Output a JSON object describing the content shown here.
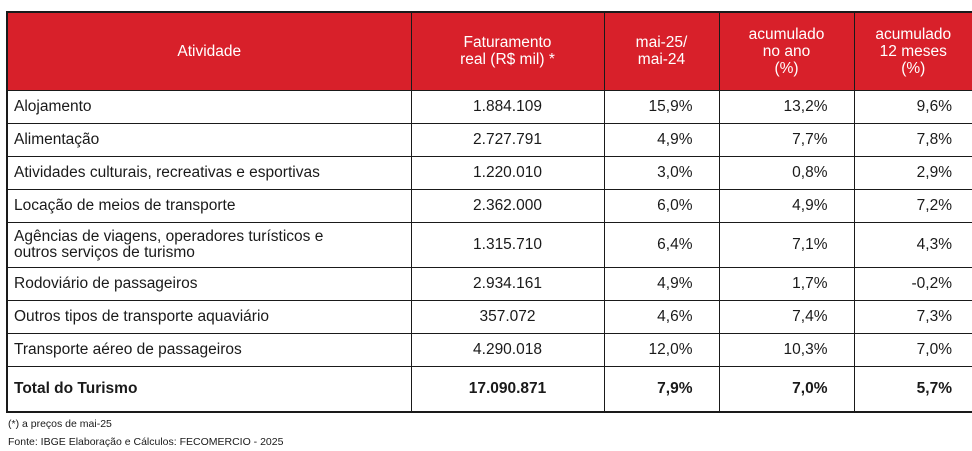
{
  "table": {
    "headers": [
      "Atividade",
      "Faturamento\nreal (R$ mil) *",
      "mai-25/\nmai-24",
      "acumulado\nno ano\n(%)",
      "acumulado\n12 meses\n(%)"
    ],
    "rows": [
      {
        "atividade": "Alojamento",
        "faturamento": "1.884.109",
        "mai": "15,9%",
        "ano": "13,2%",
        "meses": "9,6%"
      },
      {
        "atividade": "Alimentação",
        "faturamento": "2.727.791",
        "mai": "4,9%",
        "ano": "7,7%",
        "meses": "7,8%"
      },
      {
        "atividade": "Atividades culturais, recreativas e esportivas",
        "faturamento": "1.220.010",
        "mai": "3,0%",
        "ano": "0,8%",
        "meses": "2,9%"
      },
      {
        "atividade": "Locação de meios de transporte",
        "faturamento": "2.362.000",
        "mai": "6,0%",
        "ano": "4,9%",
        "meses": "7,2%"
      },
      {
        "atividade": " Agências de viagens, operadores turísticos e\noutros serviços de turismo",
        "faturamento": "1.315.710",
        "mai": "6,4%",
        "ano": "7,1%",
        "meses": "4,3%"
      },
      {
        "atividade": "Rodoviário de passageiros",
        "faturamento": "2.934.161",
        "mai": "4,9%",
        "ano": "1,7%",
        "meses": "-0,2%"
      },
      {
        "atividade": "Outros tipos de transporte aquaviário",
        "faturamento": "357.072",
        "mai": "4,6%",
        "ano": "7,4%",
        "meses": "7,3%"
      },
      {
        "atividade": "Transporte aéreo de passageiros",
        "faturamento": "4.290.018",
        "mai": "12,0%",
        "ano": "10,3%",
        "meses": "7,0%"
      }
    ],
    "total": {
      "atividade": "Total do Turismo",
      "faturamento": "17.090.871",
      "mai": "7,9%",
      "ano": "7,0%",
      "meses": "5,7%"
    }
  },
  "notes": {
    "footnote": "(*) a preços de mai-25",
    "source": "Fonte: IBGE Elaboração e Cálculos: FECOMERCIO - 2025"
  },
  "colors": {
    "header_bg": "#d8202a",
    "header_text": "#ffffff"
  }
}
